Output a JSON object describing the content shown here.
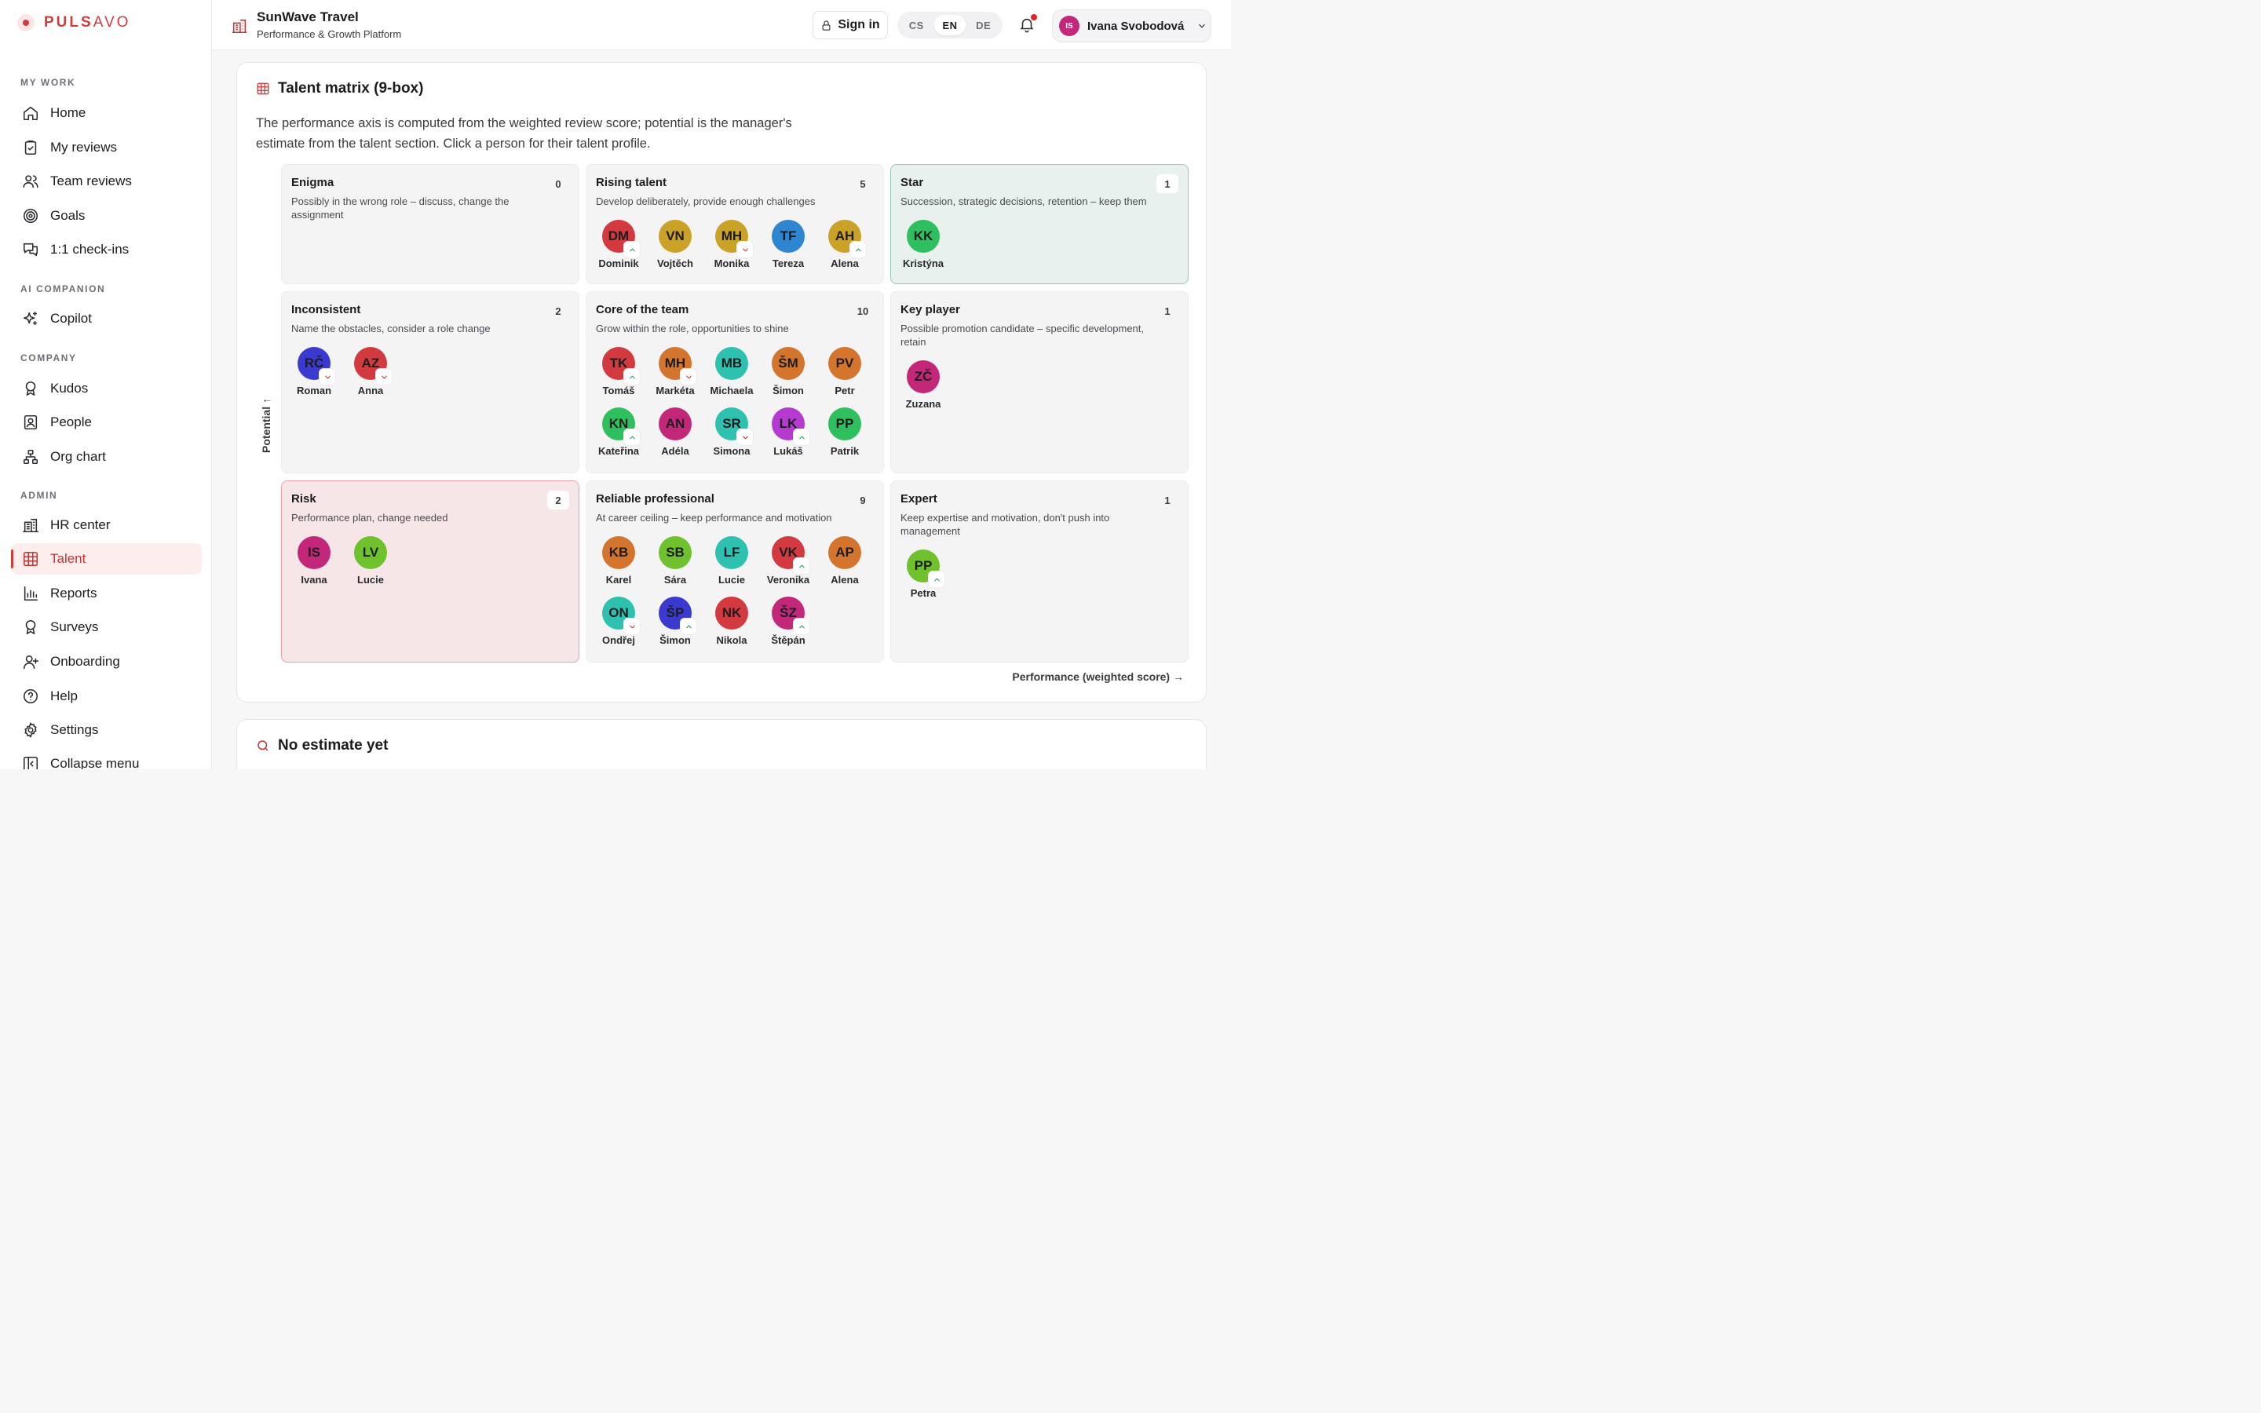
{
  "brand": {
    "logo_bold": "PULS",
    "logo_light": "AVO",
    "accent": "#d33a3a"
  },
  "sidebar": {
    "sections": {
      "my_work": "MY WORK",
      "ai": "AI COMPANION",
      "company": "COMPANY",
      "admin": "ADMIN"
    },
    "items": {
      "home": "Home",
      "my_reviews": "My reviews",
      "team_reviews": "Team reviews",
      "goals": "Goals",
      "checkins": "1:1 check-ins",
      "copilot": "Copilot",
      "kudos": "Kudos",
      "people": "People",
      "org_chart": "Org chart",
      "hr_center": "HR center",
      "talent": "Talent",
      "reports": "Reports",
      "surveys": "Surveys",
      "onboarding": "Onboarding",
      "help": "Help",
      "settings": "Settings",
      "collapse": "Collapse menu"
    },
    "active": "talent"
  },
  "header": {
    "org_name": "SunWave Travel",
    "org_sub": "Performance & Growth Platform",
    "sign_in": "Sign in",
    "languages": [
      "CS",
      "EN",
      "DE"
    ],
    "active_language": "EN",
    "user_initials": "IS",
    "user_name": "Ivana Svobodová",
    "notification_dot": true
  },
  "matrix": {
    "title": "Talent matrix (9-box)",
    "description": "The performance axis is computed from the weighted review score; potential is the manager's estimate from the talent section. Click a person for their talent profile.",
    "axis_y": "Potential ↑",
    "axis_x": "Performance (weighted score) →",
    "cells": {
      "enigma": {
        "title": "Enigma",
        "desc": "Possibly in the wrong role – discuss, change the assignment",
        "count": "0",
        "people": []
      },
      "rising": {
        "title": "Rising talent",
        "desc": "Develop deliberately, provide enough challenges",
        "count": "5",
        "people": [
          {
            "initials": "DM",
            "name": "Dominik",
            "color": "#d23a3f",
            "trend": "up"
          },
          {
            "initials": "VN",
            "name": "Vojtěch",
            "color": "#c9a227",
            "trend": ""
          },
          {
            "initials": "MH",
            "name": "Monika",
            "color": "#c9a227",
            "trend": "down"
          },
          {
            "initials": "TF",
            "name": "Tereza",
            "color": "#2f86d0",
            "trend": ""
          },
          {
            "initials": "AH",
            "name": "Alena",
            "color": "#c9a227",
            "trend": "up"
          }
        ]
      },
      "star": {
        "title": "Star",
        "desc": "Succession, strategic decisions, retention – keep them",
        "count": "1",
        "people": [
          {
            "initials": "KK",
            "name": "Kristýna",
            "color": "#2fbf5e",
            "trend": ""
          }
        ]
      },
      "inconsistent": {
        "title": "Inconsistent",
        "desc": "Name the obstacles, consider a role change",
        "count": "2",
        "people": [
          {
            "initials": "RČ",
            "name": "Roman",
            "color": "#3a3ad0",
            "trend": "down"
          },
          {
            "initials": "AZ",
            "name": "Anna",
            "color": "#d23a3f",
            "trend": "down"
          }
        ]
      },
      "core": {
        "title": "Core of the team",
        "desc": "Grow within the role, opportunities to shine",
        "count": "10",
        "people": [
          {
            "initials": "TK",
            "name": "Tomáš",
            "color": "#d23a3f",
            "trend": "up"
          },
          {
            "initials": "MH",
            "name": "Markéta",
            "color": "#d4752e",
            "trend": "down"
          },
          {
            "initials": "MB",
            "name": "Michaela",
            "color": "#2ec1b0",
            "trend": ""
          },
          {
            "initials": "ŠM",
            "name": "Šimon",
            "color": "#d4752e",
            "trend": ""
          },
          {
            "initials": "PV",
            "name": "Petr",
            "color": "#d4752e",
            "trend": ""
          },
          {
            "initials": "KN",
            "name": "Kateřina",
            "color": "#2fbf5e",
            "trend": "up"
          },
          {
            "initials": "AN",
            "name": "Adéla",
            "color": "#c2277a",
            "trend": ""
          },
          {
            "initials": "SR",
            "name": "Simona",
            "color": "#2ec1b0",
            "trend": "down"
          },
          {
            "initials": "LK",
            "name": "Lukáš",
            "color": "#b53ad0",
            "trend": "up"
          },
          {
            "initials": "PP",
            "name": "Patrik",
            "color": "#2fbf5e",
            "trend": ""
          }
        ]
      },
      "key": {
        "title": "Key player",
        "desc": "Possible promotion candidate – specific development, retain",
        "count": "1",
        "people": [
          {
            "initials": "ZČ",
            "name": "Zuzana",
            "color": "#c2277a",
            "trend": ""
          }
        ]
      },
      "risk": {
        "title": "Risk",
        "desc": "Performance plan, change needed",
        "count": "2",
        "people": [
          {
            "initials": "IS",
            "name": "Ivana",
            "color": "#c2277a",
            "trend": ""
          },
          {
            "initials": "LV",
            "name": "Lucie",
            "color": "#6fc22e",
            "trend": ""
          }
        ]
      },
      "reliable": {
        "title": "Reliable professional",
        "desc": "At career ceiling – keep performance and motivation",
        "count": "9",
        "people": [
          {
            "initials": "KB",
            "name": "Karel",
            "color": "#d4752e",
            "trend": ""
          },
          {
            "initials": "SB",
            "name": "Sára",
            "color": "#6fc22e",
            "trend": ""
          },
          {
            "initials": "LF",
            "name": "Lucie",
            "color": "#2ec1b0",
            "trend": ""
          },
          {
            "initials": "VK",
            "name": "Veronika",
            "color": "#d23a3f",
            "trend": "up"
          },
          {
            "initials": "AP",
            "name": "Alena",
            "color": "#d4752e",
            "trend": ""
          },
          {
            "initials": "ON",
            "name": "Ondřej",
            "color": "#2ec1b0",
            "trend": "down"
          },
          {
            "initials": "ŠP",
            "name": "Šimon",
            "color": "#3a3ad0",
            "trend": "up"
          },
          {
            "initials": "NK",
            "name": "Nikola",
            "color": "#d23a3f",
            "trend": ""
          },
          {
            "initials": "ŠZ",
            "name": "Štěpán",
            "color": "#c2277a",
            "trend": "up"
          }
        ]
      },
      "expert": {
        "title": "Expert",
        "desc": "Keep expertise and motivation, don't push into management",
        "count": "1",
        "people": [
          {
            "initials": "PP",
            "name": "Petra",
            "color": "#6fc22e",
            "trend": "up"
          }
        ]
      }
    }
  },
  "no_estimate": {
    "title": "No estimate yet"
  }
}
